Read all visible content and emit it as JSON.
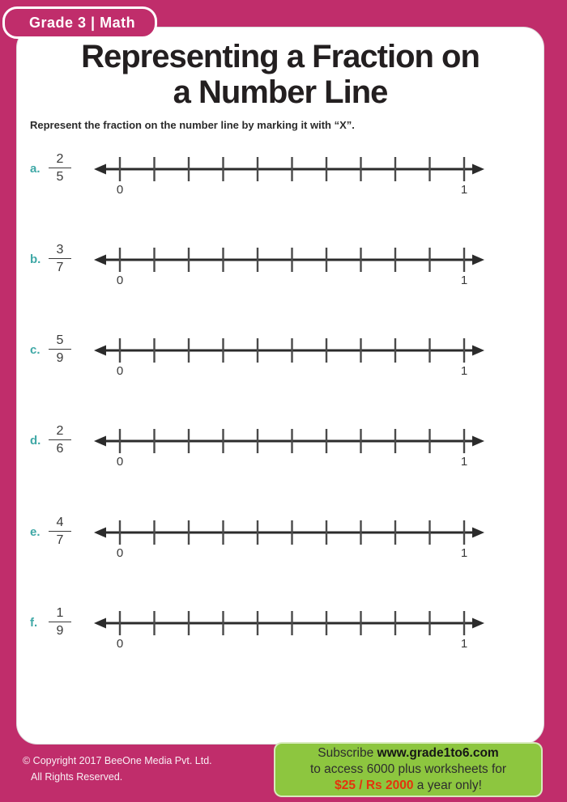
{
  "badge": {
    "label": "Grade 3 | Math"
  },
  "title": {
    "line1": "Representing a Fraction on",
    "line2": "a Number Line"
  },
  "instruction": "Represent the fraction on the number line by marking it with “X”.",
  "number_line": {
    "tick_count": 11,
    "start_label": "0",
    "end_label": "1"
  },
  "problems": [
    {
      "label": "a.",
      "numerator": "2",
      "denominator": "5"
    },
    {
      "label": "b.",
      "numerator": "3",
      "denominator": "7"
    },
    {
      "label": "c.",
      "numerator": "5",
      "denominator": "9"
    },
    {
      "label": "d.",
      "numerator": "2",
      "denominator": "6"
    },
    {
      "label": "e.",
      "numerator": "4",
      "denominator": "7"
    },
    {
      "label": "f.",
      "numerator": "1",
      "denominator": "9"
    }
  ],
  "footer": {
    "copyright_line1": "© Copyright 2017 BeeOne Media Pvt. Ltd.",
    "copyright_line2": "All Rights Reserved.",
    "subscribe": {
      "prefix": "Subscribe ",
      "url": "www.grade1to6.com",
      "line2": "to access 6000 plus worksheets for",
      "price": "$25 / Rs 2000",
      "suffix": " a year only!"
    }
  },
  "colors": {
    "page_pink": "#c02d6b",
    "label_teal": "#3fa8a6",
    "subscribe_green": "#8dc63f",
    "price_red": "#e5330d",
    "line_black": "#2b2b2b"
  }
}
